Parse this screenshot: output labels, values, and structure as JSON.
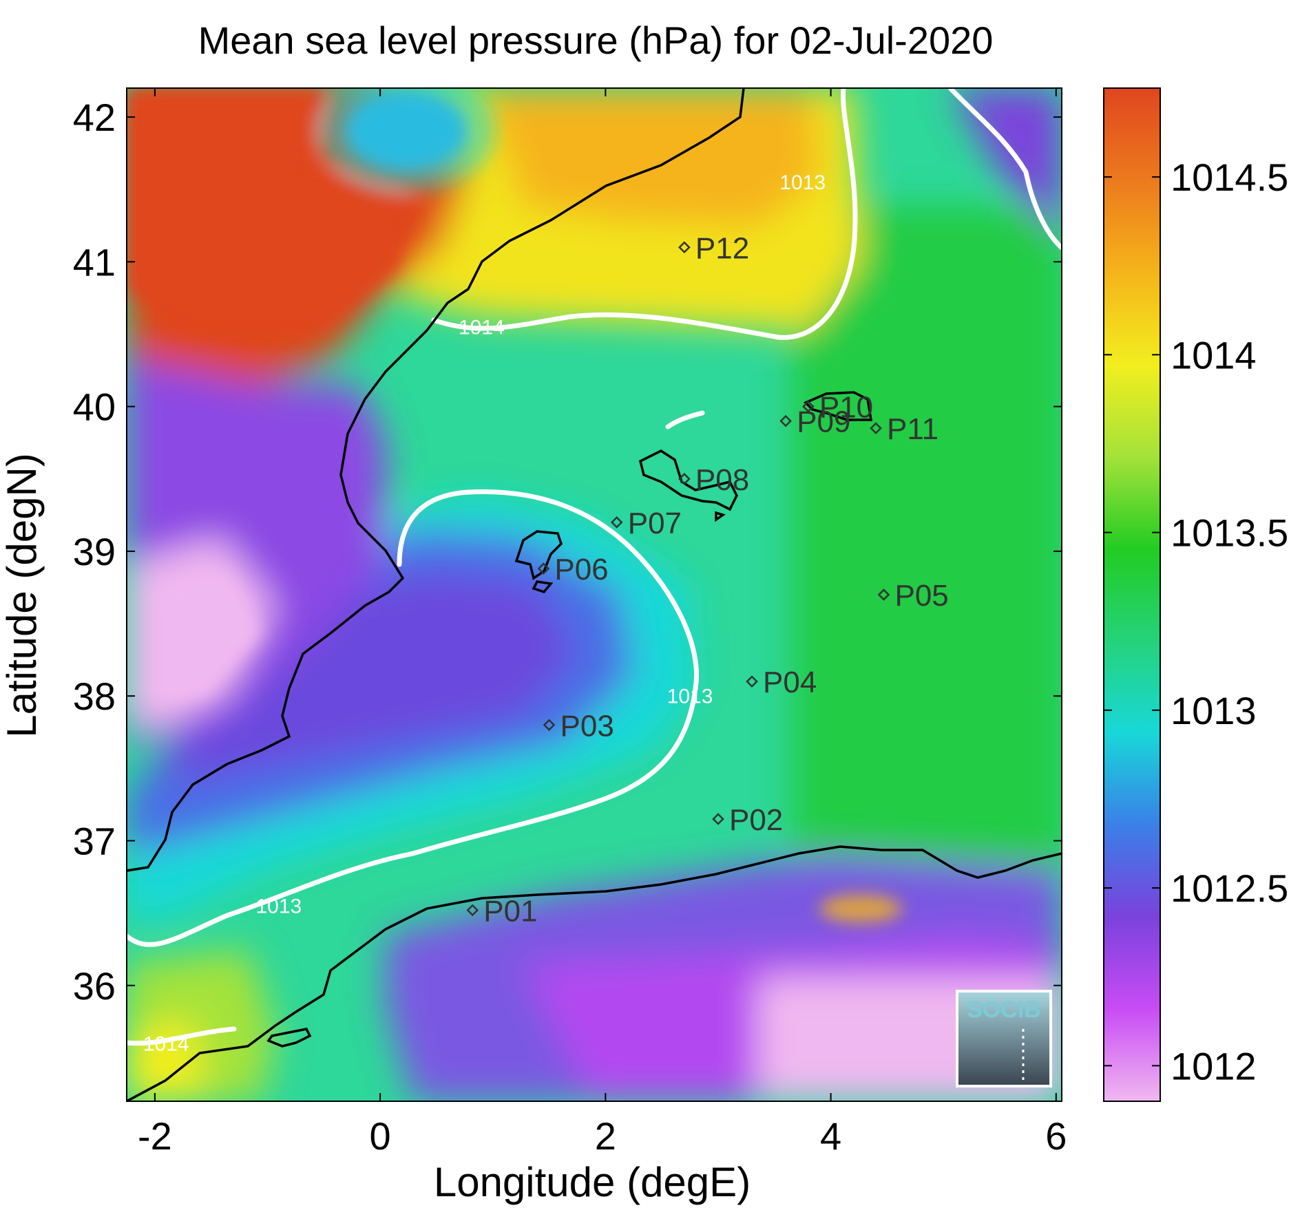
{
  "title": "Mean sea level pressure (hPa) for 02-Jul-2020",
  "xlabel": "Longitude (degE)",
  "ylabel": "Latitude (degN)",
  "xlim": [
    -2.25,
    6.05
  ],
  "ylim": [
    35.2,
    42.2
  ],
  "xticks": [
    -2,
    0,
    2,
    4,
    6
  ],
  "yticks": [
    36,
    37,
    38,
    39,
    40,
    41,
    42
  ],
  "colorbar": {
    "range": [
      1011.9,
      1014.75
    ],
    "ticks": [
      "1012",
      "1012.5",
      "1013",
      "1013.5",
      "1014",
      "1014.5"
    ],
    "tick_values": [
      1012,
      1012.5,
      1013,
      1013.5,
      1014,
      1014.5
    ],
    "colors": [
      "#f0b8f0",
      "#c84cf5",
      "#7b42dc",
      "#3a80e8",
      "#18d8d8",
      "#25d27a",
      "#22cc22",
      "#a4e23a",
      "#f2ee1e",
      "#f5b41a",
      "#ec7a1e",
      "#e0461e"
    ]
  },
  "stations": [
    {
      "name": "P01",
      "lon": 0.82,
      "lat": 36.52
    },
    {
      "name": "P02",
      "lon": 3.0,
      "lat": 37.15
    },
    {
      "name": "P03",
      "lon": 1.5,
      "lat": 37.8
    },
    {
      "name": "P04",
      "lon": 3.3,
      "lat": 38.1
    },
    {
      "name": "P05",
      "lon": 4.47,
      "lat": 38.7
    },
    {
      "name": "P06",
      "lon": 1.45,
      "lat": 38.88
    },
    {
      "name": "P07",
      "lon": 2.1,
      "lat": 39.2
    },
    {
      "name": "P08",
      "lon": 2.7,
      "lat": 39.5
    },
    {
      "name": "P09",
      "lon": 3.6,
      "lat": 39.9
    },
    {
      "name": "P10",
      "lon": 3.8,
      "lat": 40.0
    },
    {
      "name": "P11",
      "lon": 4.4,
      "lat": 39.85
    },
    {
      "name": "P12",
      "lon": 2.7,
      "lat": 41.1
    }
  ],
  "contour_labels": [
    {
      "text": "1014",
      "lon": 0.9,
      "lat": 40.5
    },
    {
      "text": "1013",
      "lon": 3.75,
      "lat": 41.5
    },
    {
      "text": "1013",
      "lon": 2.75,
      "lat": 37.95
    },
    {
      "text": "1013",
      "lon": -0.9,
      "lat": 36.5
    },
    {
      "text": "1014",
      "lon": -1.9,
      "lat": 35.55
    }
  ],
  "logo": {
    "text": "SOCIB"
  }
}
